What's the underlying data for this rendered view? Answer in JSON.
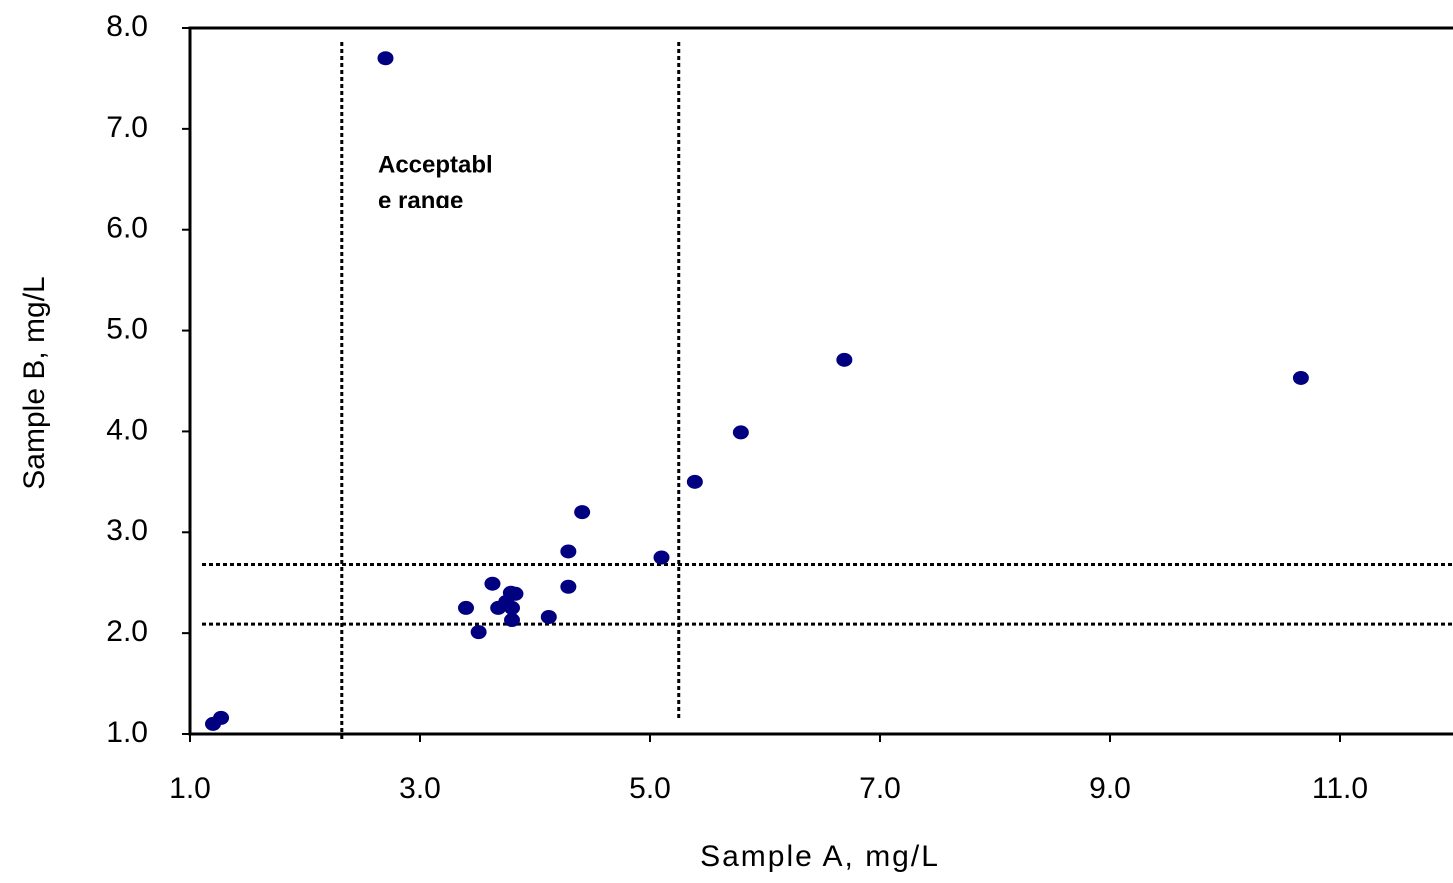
{
  "chart_data": {
    "type": "scatter",
    "x_label": "Sample A, mg/L",
    "y_label": "Sample B, mg/L",
    "annotation": [
      "Acceptabl",
      "e range"
    ],
    "color": "#000080",
    "x": [
      1.2,
      1.27,
      2.7,
      3.4,
      3.51,
      3.63,
      3.68,
      3.75,
      3.79,
      3.83,
      3.8,
      3.8,
      4.12,
      4.29,
      4.29,
      4.41,
      5.1,
      5.39,
      5.79,
      6.69,
      10.66
    ],
    "values": [
      1.1,
      1.16,
      7.7,
      2.25,
      2.01,
      2.49,
      2.25,
      2.31,
      2.4,
      2.39,
      2.25,
      2.13,
      2.16,
      2.46,
      2.81,
      3.2,
      2.75,
      3.5,
      3.99,
      4.71,
      4.53
    ],
    "reference_lines": {
      "x": [
        2.32,
        5.25
      ],
      "y": [
        2.09,
        2.68
      ]
    },
    "xlim": [
      1,
      12
    ],
    "ylim": [
      1,
      8
    ],
    "xticks": [
      {
        "value": 1,
        "label": "1.0"
      },
      {
        "value": 3,
        "label": "3.0"
      },
      {
        "value": 5,
        "label": "5.0"
      },
      {
        "value": 7,
        "label": "7.0"
      },
      {
        "value": 9,
        "label": "9.0"
      },
      {
        "value": 11,
        "label": "11.0"
      }
    ],
    "yticks": [
      {
        "value": 1,
        "label": "1.0"
      },
      {
        "value": 2,
        "label": "2.0"
      },
      {
        "value": 3,
        "label": "3.0"
      },
      {
        "value": 4,
        "label": "4.0"
      },
      {
        "value": 5,
        "label": "5.0"
      },
      {
        "value": 6,
        "label": "6.0"
      },
      {
        "value": 7,
        "label": "7.0"
      },
      {
        "value": 8,
        "label": "8.0"
      }
    ]
  }
}
